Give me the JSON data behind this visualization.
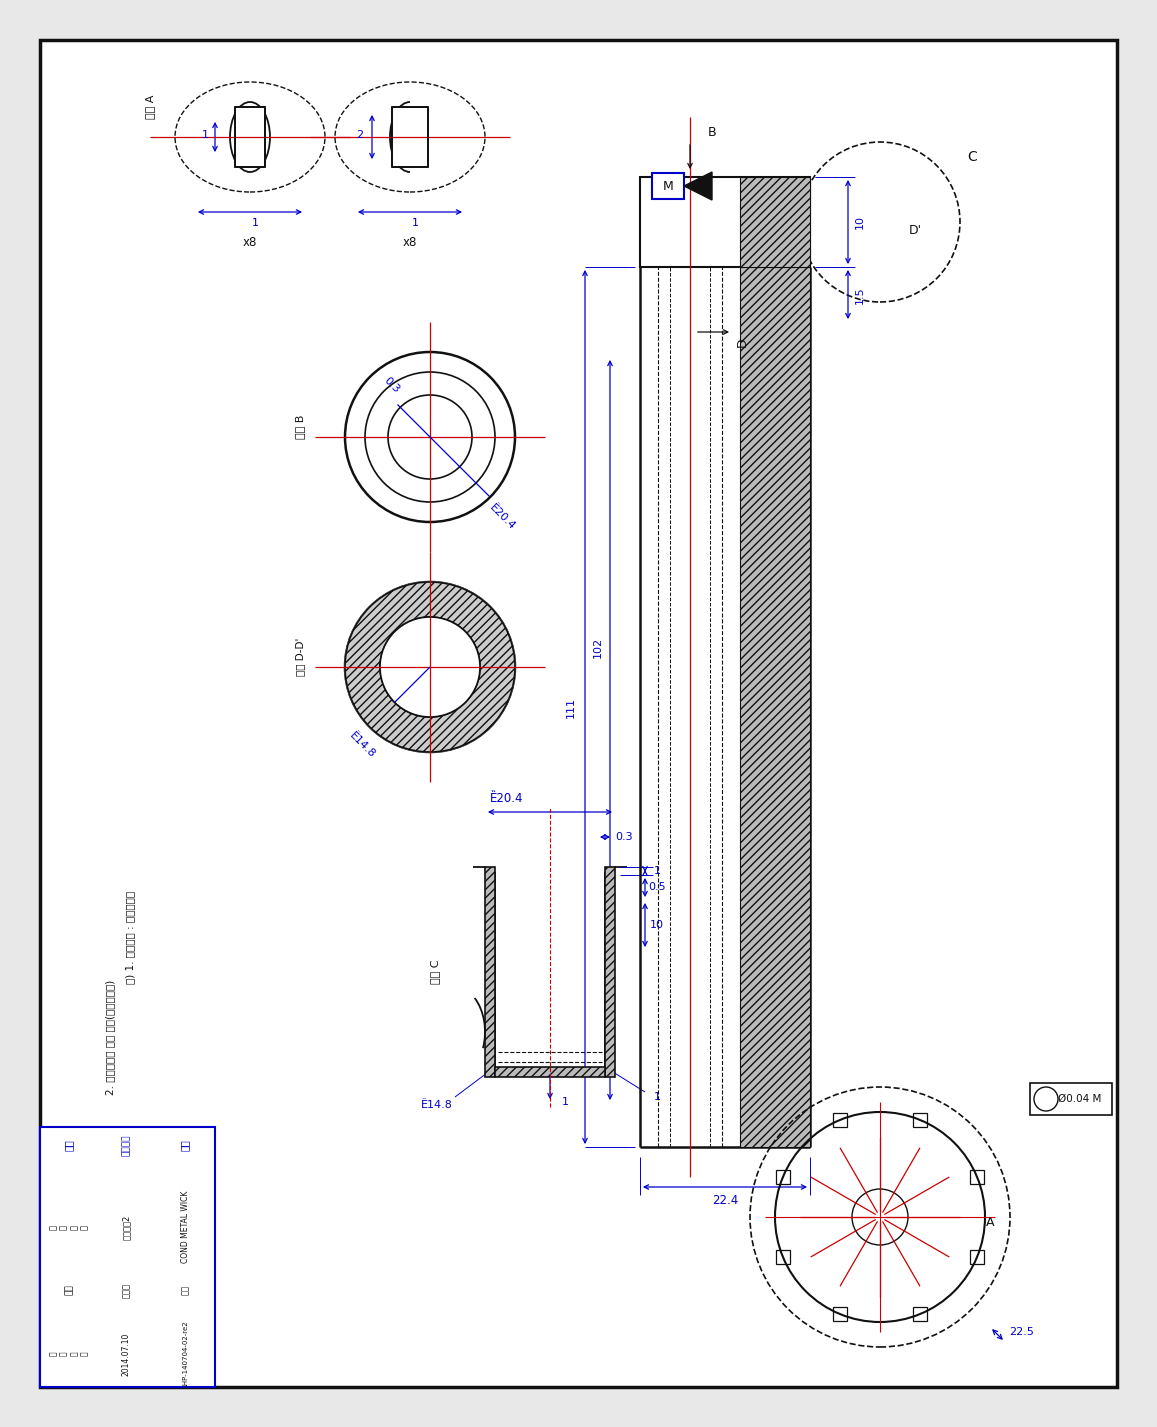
{
  "bg_color": "#e8e8e8",
  "drawing_bg": "#ffffff",
  "blue": "#0000cc",
  "red": "#cc0000",
  "dark": "#111111",
  "part_name": "COND METAL WICK",
  "part_number": "LHP-140704-02-re2",
  "date": "2014.07.10",
  "note1": "주) 1. 사용재료 : 실스러니켈",
  "note2": "2. 스켔일단위 수는 제외(스켈리스트)",
  "label_sectionA": "단면 A",
  "label_sectionB": "단면 B",
  "label_sectionDD": "단면 D-D'",
  "label_viewC": "영상 C",
  "dim_204": "Ȅ20.4",
  "dim_148": "Ȅ14.8",
  "dim_204b": "Ȅ20.4",
  "dim_148b": "Ȅ14.8",
  "dim_004M": "Ø0.04 M",
  "label_B": "B",
  "label_C": "C",
  "label_D": "D",
  "label_Dprime": "D'",
  "label_M": "M",
  "label_A": "A"
}
